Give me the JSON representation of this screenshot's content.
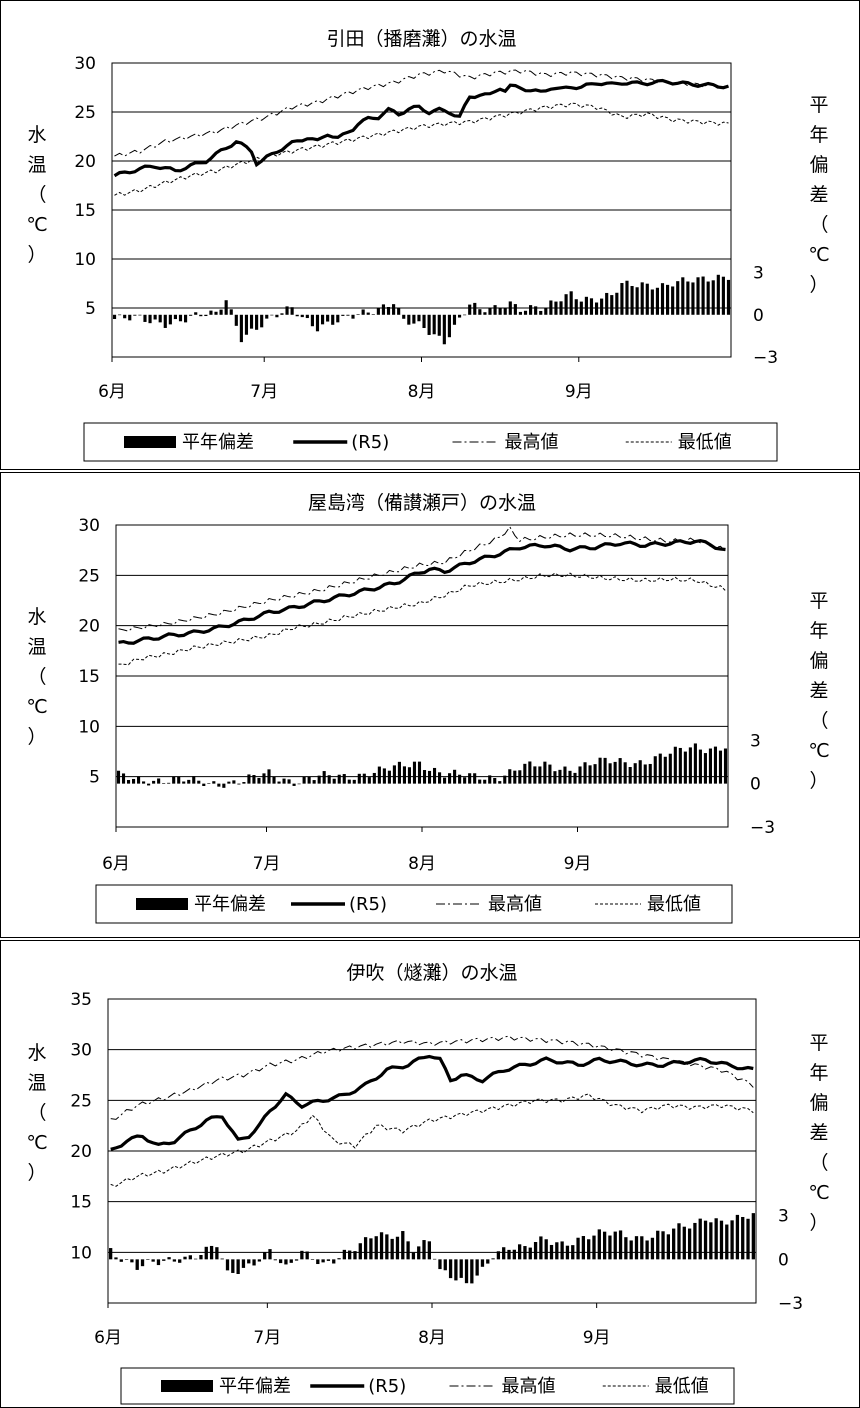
{
  "chart_data": [
    {
      "type": "line",
      "title": "引田（播磨灘）の水温",
      "ylabel_left": [
        "水",
        "温",
        "（",
        "℃",
        "）"
      ],
      "ylabel_right": [
        "平",
        "年",
        "偏",
        "差",
        "（",
        "℃",
        "）"
      ],
      "x_ticks": [
        "6月",
        "7月",
        "8月",
        "9月"
      ],
      "y_ticks": [
        "30",
        "25",
        "20",
        "15",
        "10",
        "5"
      ],
      "y_right_ticks": [
        "3",
        "0",
        "−3"
      ],
      "ylim": [
        0,
        30
      ],
      "anomaly_lim": [
        -3,
        4
      ],
      "legend": [
        "平年偏差",
        "(R5)",
        "最高値",
        "最低値"
      ],
      "series": [
        {
          "name": "(R5)",
          "style": "thick",
          "days": [
            0,
            5,
            8,
            12,
            15,
            18,
            21,
            24,
            27,
            28,
            29,
            32,
            35,
            38,
            40,
            42,
            44,
            45,
            47,
            48,
            50,
            52,
            54,
            56,
            58,
            60,
            62,
            64,
            66,
            68,
            70,
            72,
            74,
            76,
            77,
            78,
            80,
            82,
            84,
            86,
            88,
            90,
            92,
            95,
            98,
            100,
            103,
            106,
            109,
            112,
            115,
            118,
            121
          ],
          "values": [
            18.5,
            19.2,
            19.5,
            19.0,
            19.5,
            20.0,
            21.0,
            22.0,
            21.0,
            19.8,
            20.0,
            21.0,
            21.8,
            22.4,
            22.0,
            22.8,
            22.3,
            22.6,
            23.3,
            23.8,
            24.3,
            24.5,
            25.2,
            24.8,
            25.3,
            25.5,
            25.0,
            25.2,
            25.0,
            24.5,
            26.5,
            26.8,
            26.7,
            27.5,
            27.2,
            27.6,
            27.5,
            27.2,
            27.0,
            27.5,
            27.3,
            27.6,
            27.5,
            28.0,
            27.8,
            28.0,
            27.9,
            28.0,
            28.1,
            27.9,
            27.8,
            27.7,
            27.6
          ]
        },
        {
          "name": "最高値",
          "style": "dashdot",
          "days": [
            0,
            5,
            10,
            15,
            20,
            25,
            30,
            35,
            40,
            45,
            50,
            55,
            60,
            65,
            70,
            75,
            80,
            85,
            90,
            95,
            100,
            105,
            110,
            115,
            121
          ],
          "values": [
            20.5,
            21.0,
            22.0,
            22.5,
            23.0,
            23.8,
            24.5,
            25.5,
            26.0,
            26.8,
            27.5,
            28.0,
            28.8,
            29.2,
            28.5,
            29.0,
            29.2,
            28.8,
            29.0,
            28.8,
            28.5,
            28.3,
            28.0,
            27.8,
            27.5
          ]
        },
        {
          "name": "最低値",
          "style": "dashed",
          "days": [
            0,
            5,
            10,
            15,
            20,
            25,
            30,
            35,
            40,
            45,
            50,
            55,
            60,
            65,
            70,
            75,
            80,
            85,
            90,
            95,
            100,
            105,
            110,
            115,
            121
          ],
          "values": [
            16.5,
            17.0,
            17.8,
            18.5,
            19.0,
            19.8,
            20.5,
            21.0,
            21.5,
            22.0,
            22.5,
            23.0,
            23.5,
            23.8,
            24.0,
            24.5,
            25.0,
            25.5,
            25.8,
            25.5,
            24.5,
            24.8,
            24.2,
            24.0,
            23.8
          ]
        },
        {
          "name": "平年偏差",
          "style": "bars",
          "days": [
            0,
            10,
            20,
            22,
            25,
            30,
            35,
            40,
            45,
            50,
            55,
            57,
            60,
            65,
            66,
            70,
            72,
            75,
            78,
            80,
            83,
            85,
            88,
            90,
            92,
            95,
            98,
            100,
            103,
            105,
            108,
            110,
            112,
            115,
            118,
            121
          ],
          "values": [
            -0.3,
            -0.5,
            0.0,
            1.2,
            -1.5,
            -0.6,
            0.5,
            -0.8,
            -0.5,
            0.3,
            1.0,
            -0.5,
            -0.9,
            -1.8,
            -1.2,
            0.8,
            0.2,
            0.3,
            0.9,
            0.6,
            0.6,
            0.4,
            1.0,
            1.4,
            1.2,
            1.3,
            1.4,
            2.0,
            2.0,
            2.1,
            2.2,
            2.4,
            2.4,
            2.3,
            2.5,
            2.9
          ]
        }
      ]
    },
    {
      "type": "line",
      "title": "屋島湾（備讃瀬戸）の水温",
      "ylabel_left": [
        "水",
        "温",
        "（",
        "℃",
        "）"
      ],
      "ylabel_right": [
        "平",
        "年",
        "偏",
        "差",
        "（",
        "℃",
        "）"
      ],
      "x_ticks": [
        "6月",
        "7月",
        "8月",
        "9月"
      ],
      "y_ticks": [
        "30",
        "25",
        "20",
        "15",
        "10",
        "5"
      ],
      "y_right_ticks": [
        "3",
        "0",
        "−3"
      ],
      "ylim": [
        0,
        30
      ],
      "anomaly_lim": [
        -3,
        4
      ],
      "legend": [
        "平年偏差",
        "(R5)",
        "最高値",
        "最低値"
      ],
      "series": [
        {
          "name": "(R5)",
          "style": "thick",
          "days": [
            0,
            5,
            10,
            15,
            20,
            25,
            30,
            35,
            40,
            45,
            50,
            55,
            60,
            62,
            65,
            70,
            75,
            80,
            85,
            90,
            95,
            100,
            105,
            110,
            115,
            118,
            121
          ],
          "values": [
            18.2,
            18.6,
            19.0,
            19.3,
            19.8,
            20.5,
            21.3,
            21.8,
            22.4,
            23.0,
            23.6,
            24.2,
            25.3,
            25.6,
            25.4,
            26.3,
            27.0,
            27.8,
            28.0,
            27.6,
            27.8,
            28.2,
            28.0,
            28.2,
            28.4,
            28.1,
            27.4
          ]
        },
        {
          "name": "最高値",
          "style": "dashdot",
          "days": [
            0,
            10,
            20,
            30,
            40,
            50,
            60,
            65,
            70,
            75,
            78,
            80,
            85,
            90,
            95,
            100,
            105,
            110,
            115,
            121
          ],
          "values": [
            19.5,
            20.2,
            21.2,
            22.5,
            23.5,
            24.8,
            26.0,
            26.3,
            27.5,
            28.5,
            29.6,
            28.5,
            28.8,
            29.0,
            29.0,
            28.9,
            28.6,
            28.4,
            28.5,
            27.5
          ]
        },
        {
          "name": "最低値",
          "style": "dashed",
          "days": [
            0,
            5,
            10,
            15,
            20,
            25,
            30,
            35,
            40,
            45,
            50,
            55,
            60,
            65,
            70,
            75,
            80,
            85,
            90,
            95,
            100,
            105,
            110,
            115,
            121
          ],
          "values": [
            16.0,
            16.8,
            17.2,
            17.8,
            18.2,
            18.6,
            19.0,
            19.8,
            20.2,
            20.8,
            21.3,
            21.8,
            22.2,
            23.0,
            24.0,
            24.3,
            24.6,
            25.0,
            25.0,
            24.8,
            24.6,
            24.5,
            24.6,
            24.5,
            23.6
          ]
        },
        {
          "name": "平年偏差",
          "style": "bars",
          "days": [
            0,
            10,
            20,
            25,
            30,
            35,
            40,
            45,
            50,
            55,
            60,
            65,
            70,
            75,
            80,
            85,
            90,
            95,
            100,
            105,
            110,
            115,
            118,
            121
          ],
          "values": [
            0.5,
            0.2,
            0.1,
            0.1,
            0.7,
            0.2,
            0.4,
            0.5,
            0.8,
            1.0,
            1.5,
            0.7,
            0.4,
            0.5,
            1.1,
            1.2,
            1.1,
            1.4,
            1.5,
            1.6,
            2.0,
            2.6,
            2.5,
            2.6
          ]
        }
      ]
    },
    {
      "type": "line",
      "title": "伊吹（燧灘）の水温",
      "ylabel_left": [
        "水",
        "温",
        "（",
        "℃",
        "）"
      ],
      "ylabel_right": [
        "平",
        "年",
        "偏",
        "差",
        "（",
        "℃",
        "）"
      ],
      "x_ticks": [
        "6月",
        "7月",
        "8月",
        "9月"
      ],
      "y_ticks": [
        "35",
        "30",
        "25",
        "20",
        "15",
        "10"
      ],
      "y_right_ticks": [
        "3",
        "0",
        "−3"
      ],
      "ylim": [
        5,
        35
      ],
      "anomaly_lim": [
        -3,
        4
      ],
      "legend": [
        "平年偏差",
        "(R5)",
        "最高値",
        "最低値"
      ],
      "series": [
        {
          "name": "(R5)",
          "style": "thick",
          "days": [
            0,
            3,
            6,
            9,
            12,
            15,
            18,
            21,
            24,
            26,
            28,
            30,
            33,
            36,
            40,
            44,
            48,
            52,
            56,
            60,
            62,
            64,
            66,
            70,
            74,
            78,
            82,
            85,
            88,
            92,
            96,
            100,
            104,
            108,
            112,
            116,
            121
          ],
          "values": [
            20.0,
            21.0,
            21.5,
            20.5,
            21.0,
            22.0,
            23.0,
            23.5,
            21.0,
            21.5,
            22.5,
            24.0,
            25.5,
            24.5,
            25.0,
            25.5,
            26.5,
            28.0,
            28.5,
            29.5,
            29.0,
            27.0,
            27.5,
            27.0,
            28.0,
            28.5,
            29.0,
            28.8,
            28.5,
            29.0,
            28.8,
            28.5,
            28.5,
            28.8,
            29.0,
            28.5,
            28.0
          ]
        },
        {
          "name": "最高値",
          "style": "dashdot",
          "days": [
            0,
            5,
            10,
            15,
            20,
            25,
            30,
            35,
            40,
            45,
            50,
            55,
            60,
            65,
            70,
            75,
            80,
            85,
            90,
            95,
            100,
            105,
            110,
            115,
            121
          ],
          "values": [
            23.0,
            24.5,
            25.2,
            26.0,
            27.0,
            27.5,
            28.5,
            29.0,
            29.8,
            30.2,
            30.5,
            30.8,
            30.6,
            30.8,
            31.0,
            31.2,
            31.0,
            30.8,
            30.5,
            30.0,
            29.5,
            29.0,
            28.5,
            28.0,
            26.5
          ]
        },
        {
          "name": "最低値",
          "style": "dashed",
          "days": [
            0,
            5,
            10,
            15,
            20,
            25,
            30,
            35,
            38,
            42,
            46,
            50,
            55,
            60,
            65,
            70,
            75,
            80,
            85,
            90,
            95,
            100,
            105,
            110,
            115,
            121
          ],
          "values": [
            16.5,
            17.5,
            18.0,
            18.8,
            19.5,
            20.0,
            21.0,
            22.0,
            23.5,
            21.0,
            20.5,
            22.5,
            22.0,
            23.0,
            23.5,
            24.0,
            24.5,
            25.0,
            25.0,
            25.5,
            24.5,
            24.0,
            24.5,
            24.3,
            24.5,
            24.0
          ]
        },
        {
          "name": "平年偏差",
          "style": "bars",
          "days": [
            0,
            5,
            10,
            15,
            20,
            22,
            25,
            30,
            33,
            36,
            40,
            44,
            48,
            50,
            52,
            55,
            57,
            60,
            62,
            63,
            65,
            67,
            70,
            72,
            75,
            78,
            80,
            82,
            85,
            90,
            95,
            100,
            105,
            110,
            112,
            115,
            118,
            121
          ],
          "values": [
            0.7,
            -0.5,
            -0.3,
            0.3,
            1.0,
            -1.2,
            -0.8,
            0.8,
            -0.6,
            0.3,
            -0.4,
            0.6,
            1.2,
            1.6,
            1.4,
            1.8,
            0.9,
            1.4,
            -0.9,
            -1.1,
            -1.5,
            -1.8,
            -0.6,
            0.5,
            0.8,
            0.6,
            1.1,
            1.4,
            1.2,
            1.5,
            1.8,
            1.6,
            1.8,
            2.4,
            3.0,
            2.7,
            2.7,
            2.9
          ]
        }
      ]
    }
  ]
}
